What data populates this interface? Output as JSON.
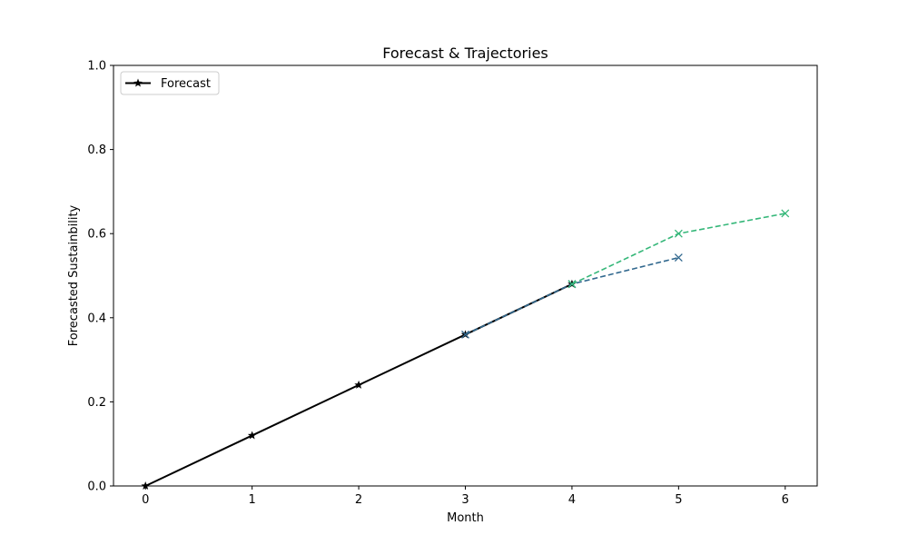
{
  "chart_data": {
    "type": "line",
    "title": "Forecast & Trajectories",
    "xlabel": "Month",
    "ylabel": "Forecasted Sustainbility",
    "xlim": [
      -0.3,
      6.3
    ],
    "ylim": [
      0.0,
      1.0
    ],
    "xticks": [
      "0",
      "1",
      "2",
      "3",
      "4",
      "5",
      "6"
    ],
    "yticks": [
      "0.0",
      "0.2",
      "0.4",
      "0.6",
      "0.8",
      "1.0"
    ],
    "grid": false,
    "legend": {
      "position": "top-left",
      "entries": [
        "Forecast"
      ]
    },
    "series": [
      {
        "name": "Forecast",
        "color": "#000000",
        "style": "solid",
        "marker": "star",
        "x": [
          0,
          1,
          2,
          3,
          4
        ],
        "y": [
          0.0,
          0.12,
          0.24,
          0.36,
          0.48
        ]
      },
      {
        "color": "#31688e",
        "style": "dashed",
        "marker": "x",
        "x": [
          3,
          4,
          5
        ],
        "y": [
          0.36,
          0.48,
          0.543
        ]
      },
      {
        "color": "#35b779",
        "style": "dashed",
        "marker": "x",
        "x": [
          4,
          5,
          6
        ],
        "y": [
          0.48,
          0.6,
          0.648
        ]
      }
    ]
  }
}
